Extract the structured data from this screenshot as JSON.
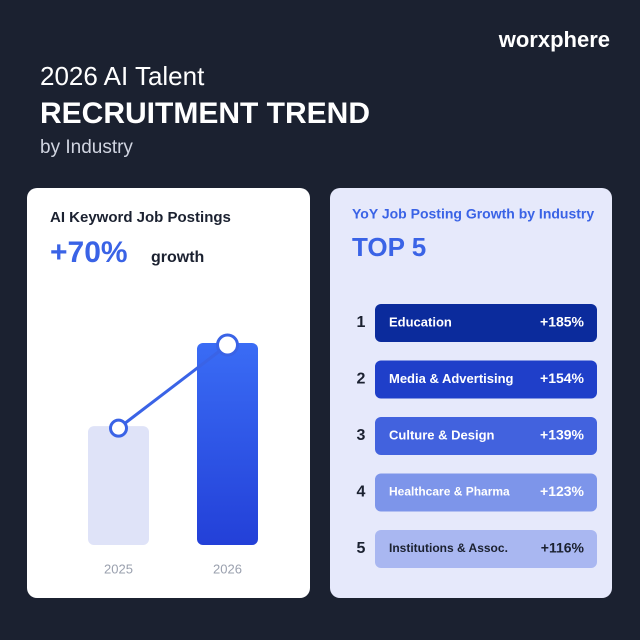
{
  "header": {
    "brand": "worxphere",
    "title_line1": "2026 AI Talent",
    "title_line2": "RECRUITMENT TREND",
    "subtitle": "by Industry"
  },
  "chart_data": [
    {
      "type": "bar",
      "title": "AI Keyword Job Postings",
      "annotation": "+70%",
      "annotation_text": "growth",
      "categories": [
        "2025",
        "2026"
      ],
      "values": [
        100,
        170
      ],
      "colors": [
        "#dfe3f8",
        "#2f55e8"
      ],
      "line_color": "#3a63e6"
    },
    {
      "type": "ranking",
      "title": "YoY Job Posting Growth by Industry",
      "subtitle": "TOP 5",
      "ranks": [
        1,
        2,
        3,
        4,
        5
      ],
      "categories": [
        "Education",
        "Media & Advertising",
        "Culture & Design",
        "Healthcare & Pharma",
        "Institutions & Assoc."
      ],
      "values": [
        185,
        154,
        139,
        123,
        116
      ],
      "value_labels": [
        "+185%",
        "+154%",
        "+139%",
        "+123%",
        "+116%"
      ],
      "colors": [
        "#0b2b9c",
        "#1f3fc9",
        "#4262de",
        "#7d95ea",
        "#a9b7f1"
      ],
      "label_colors": [
        "#ffffff",
        "#ffffff",
        "#ffffff",
        "#ffffff",
        "#1b2130"
      ]
    }
  ]
}
